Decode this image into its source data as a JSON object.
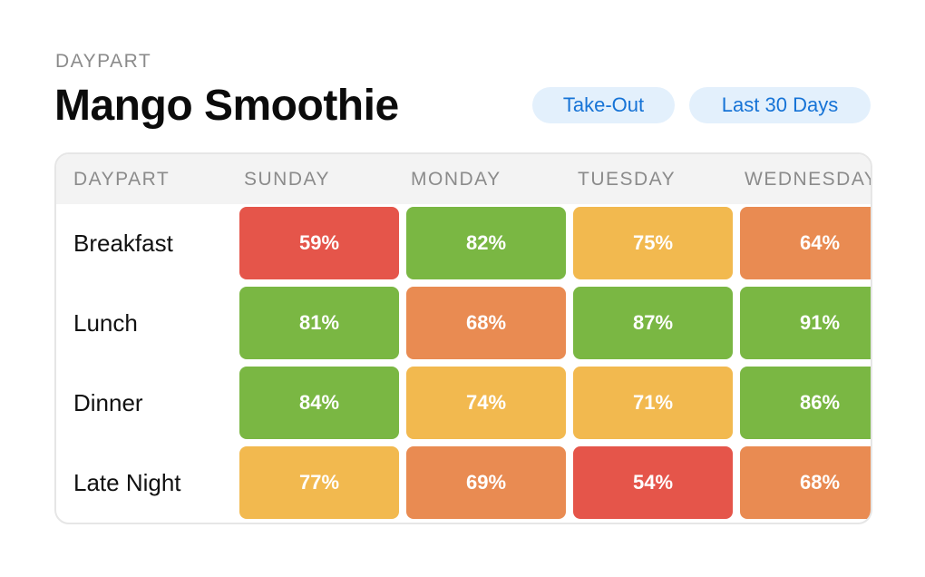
{
  "header": {
    "overline": "DAYPART",
    "title": "Mango Smoothie",
    "filters": [
      {
        "label": "Take-Out"
      },
      {
        "label": "Last 30 Days"
      }
    ]
  },
  "table": {
    "columns": [
      "DAYPART",
      "SUNDAY",
      "MONDAY",
      "TUESDAY",
      "WEDNESDAY"
    ],
    "rows": [
      {
        "label": "Breakfast",
        "cells": [
          {
            "value": "59%",
            "status": "red"
          },
          {
            "value": "82%",
            "status": "green"
          },
          {
            "value": "75%",
            "status": "yellow"
          },
          {
            "value": "64%",
            "status": "orange"
          }
        ]
      },
      {
        "label": "Lunch",
        "cells": [
          {
            "value": "81%",
            "status": "green"
          },
          {
            "value": "68%",
            "status": "orange"
          },
          {
            "value": "87%",
            "status": "green"
          },
          {
            "value": "91%",
            "status": "green"
          }
        ]
      },
      {
        "label": "Dinner",
        "cells": [
          {
            "value": "84%",
            "status": "green"
          },
          {
            "value": "74%",
            "status": "yellow"
          },
          {
            "value": "71%",
            "status": "yellow"
          },
          {
            "value": "86%",
            "status": "green"
          }
        ]
      },
      {
        "label": "Late Night",
        "cells": [
          {
            "value": "77%",
            "status": "yellow"
          },
          {
            "value": "69%",
            "status": "orange"
          },
          {
            "value": "54%",
            "status": "red"
          },
          {
            "value": "68%",
            "status": "orange"
          }
        ]
      }
    ]
  },
  "colors": {
    "red": "#e5554a",
    "green": "#7ab743",
    "yellow": "#f2b94f",
    "orange": "#e98b52",
    "pill_background": "#e3f0fc",
    "pill_text": "#1673d6"
  }
}
